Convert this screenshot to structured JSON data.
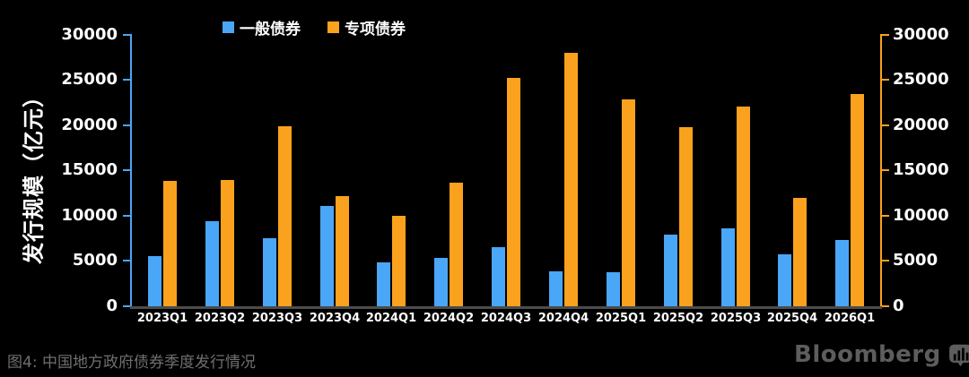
{
  "figure": {
    "caption": "图4: 中国地方政府债券季度发行情况",
    "brand": "Bloomberg",
    "background": "#000000",
    "caption_color": "#6f6f6f",
    "brand_color": "#5d5d5d"
  },
  "chart_data": {
    "type": "bar",
    "title": "中国地方政府债券季度发行情况",
    "ylabel": "发行规模（亿元）",
    "xlabel": "",
    "categories": [
      "2023Q1",
      "2023Q2",
      "2023Q3",
      "2023Q4",
      "2024Q1",
      "2024Q2",
      "2024Q3",
      "2024Q4",
      "2025Q1",
      "2025Q2",
      "2025Q3",
      "2025Q4",
      "2026Q1"
    ],
    "series": [
      {
        "name": "一般债券",
        "color": "#4aa6f7",
        "values": [
          5500,
          9400,
          7500,
          11100,
          4900,
          5300,
          6500,
          3900,
          3800,
          7900,
          8600,
          5700,
          7300
        ]
      },
      {
        "name": "专项债券",
        "color": "#faa21d",
        "values": [
          13900,
          14000,
          19900,
          12200,
          10000,
          13700,
          25200,
          28000,
          22900,
          19800,
          22100,
          12000,
          23500
        ]
      }
    ],
    "ylim": [
      0,
      30000
    ],
    "yticks": [
      0,
      5000,
      10000,
      15000,
      20000,
      25000,
      30000
    ],
    "grid": false,
    "legend_position": "top",
    "dual_y_axis": true,
    "left_axis_color": "#4aa6f7",
    "right_axis_color": "#faa21d",
    "baseline_color": "#4c4c4c",
    "tick_label_color": "#ffffff"
  }
}
